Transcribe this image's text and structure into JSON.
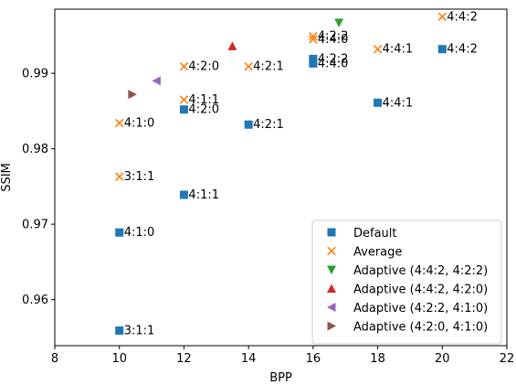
{
  "chart_data": {
    "type": "scatter",
    "xlabel": "BPP",
    "ylabel": "SSIM",
    "xlim": [
      8,
      22
    ],
    "ylim": [
      0.9539,
      0.9985
    ],
    "xticks": [
      8,
      10,
      12,
      14,
      16,
      18,
      20,
      22
    ],
    "yticks": [
      0.96,
      0.97,
      0.98,
      0.99
    ],
    "grid": false,
    "legend_position": "lower-right",
    "series": [
      {
        "name": "Default",
        "marker": "square",
        "color": "#1f77b4",
        "points": [
          {
            "x": 10,
            "y": 0.9559,
            "label": "3:1:1"
          },
          {
            "x": 10,
            "y": 0.9689,
            "label": "4:1:0"
          },
          {
            "x": 12,
            "y": 0.9739,
            "label": "4:1:1"
          },
          {
            "x": 12,
            "y": 0.9852,
            "label": "4:2:0"
          },
          {
            "x": 14,
            "y": 0.9832,
            "label": "4:2:1"
          },
          {
            "x": 16,
            "y": 0.9913,
            "label": "4:4:0"
          },
          {
            "x": 16,
            "y": 0.9919,
            "label": "4:2:2"
          },
          {
            "x": 18,
            "y": 0.9861,
            "label": "4:4:1"
          },
          {
            "x": 20,
            "y": 0.9932,
            "label": "4:4:2"
          }
        ]
      },
      {
        "name": "Average",
        "marker": "x",
        "color": "#ff7f0e",
        "points": [
          {
            "x": 10,
            "y": 0.9763,
            "label": "3:1:1"
          },
          {
            "x": 10,
            "y": 0.9834,
            "label": "4:1:0"
          },
          {
            "x": 12,
            "y": 0.9865,
            "label": "4:1:1"
          },
          {
            "x": 12,
            "y": 0.9909,
            "label": "4:2:0"
          },
          {
            "x": 14,
            "y": 0.9909,
            "label": "4:2:1"
          },
          {
            "x": 16,
            "y": 0.9945,
            "label": "4:4:0"
          },
          {
            "x": 16,
            "y": 0.9949,
            "label": "4:2:2"
          },
          {
            "x": 18,
            "y": 0.9932,
            "label": "4:4:1"
          },
          {
            "x": 20,
            "y": 0.9975,
            "label": "4:4:2"
          }
        ]
      },
      {
        "name": "Adaptive (4:4:2, 4:2:2)",
        "marker": "triangle-down",
        "color": "#2ca02c",
        "points": [
          {
            "x": 16.8,
            "y": 0.9967
          }
        ]
      },
      {
        "name": "Adaptive (4:4:2, 4:2:0)",
        "marker": "triangle-up",
        "color": "#d62728",
        "points": [
          {
            "x": 13.5,
            "y": 0.9936
          }
        ]
      },
      {
        "name": "Adaptive (4:2:2, 4:1:0)",
        "marker": "triangle-left",
        "color": "#9467bd",
        "points": [
          {
            "x": 11.15,
            "y": 0.989
          }
        ]
      },
      {
        "name": "Adaptive (4:2:0, 4:1:0)",
        "marker": "triangle-right",
        "color": "#8c564b",
        "points": [
          {
            "x": 10.4,
            "y": 0.9872
          }
        ]
      }
    ]
  }
}
